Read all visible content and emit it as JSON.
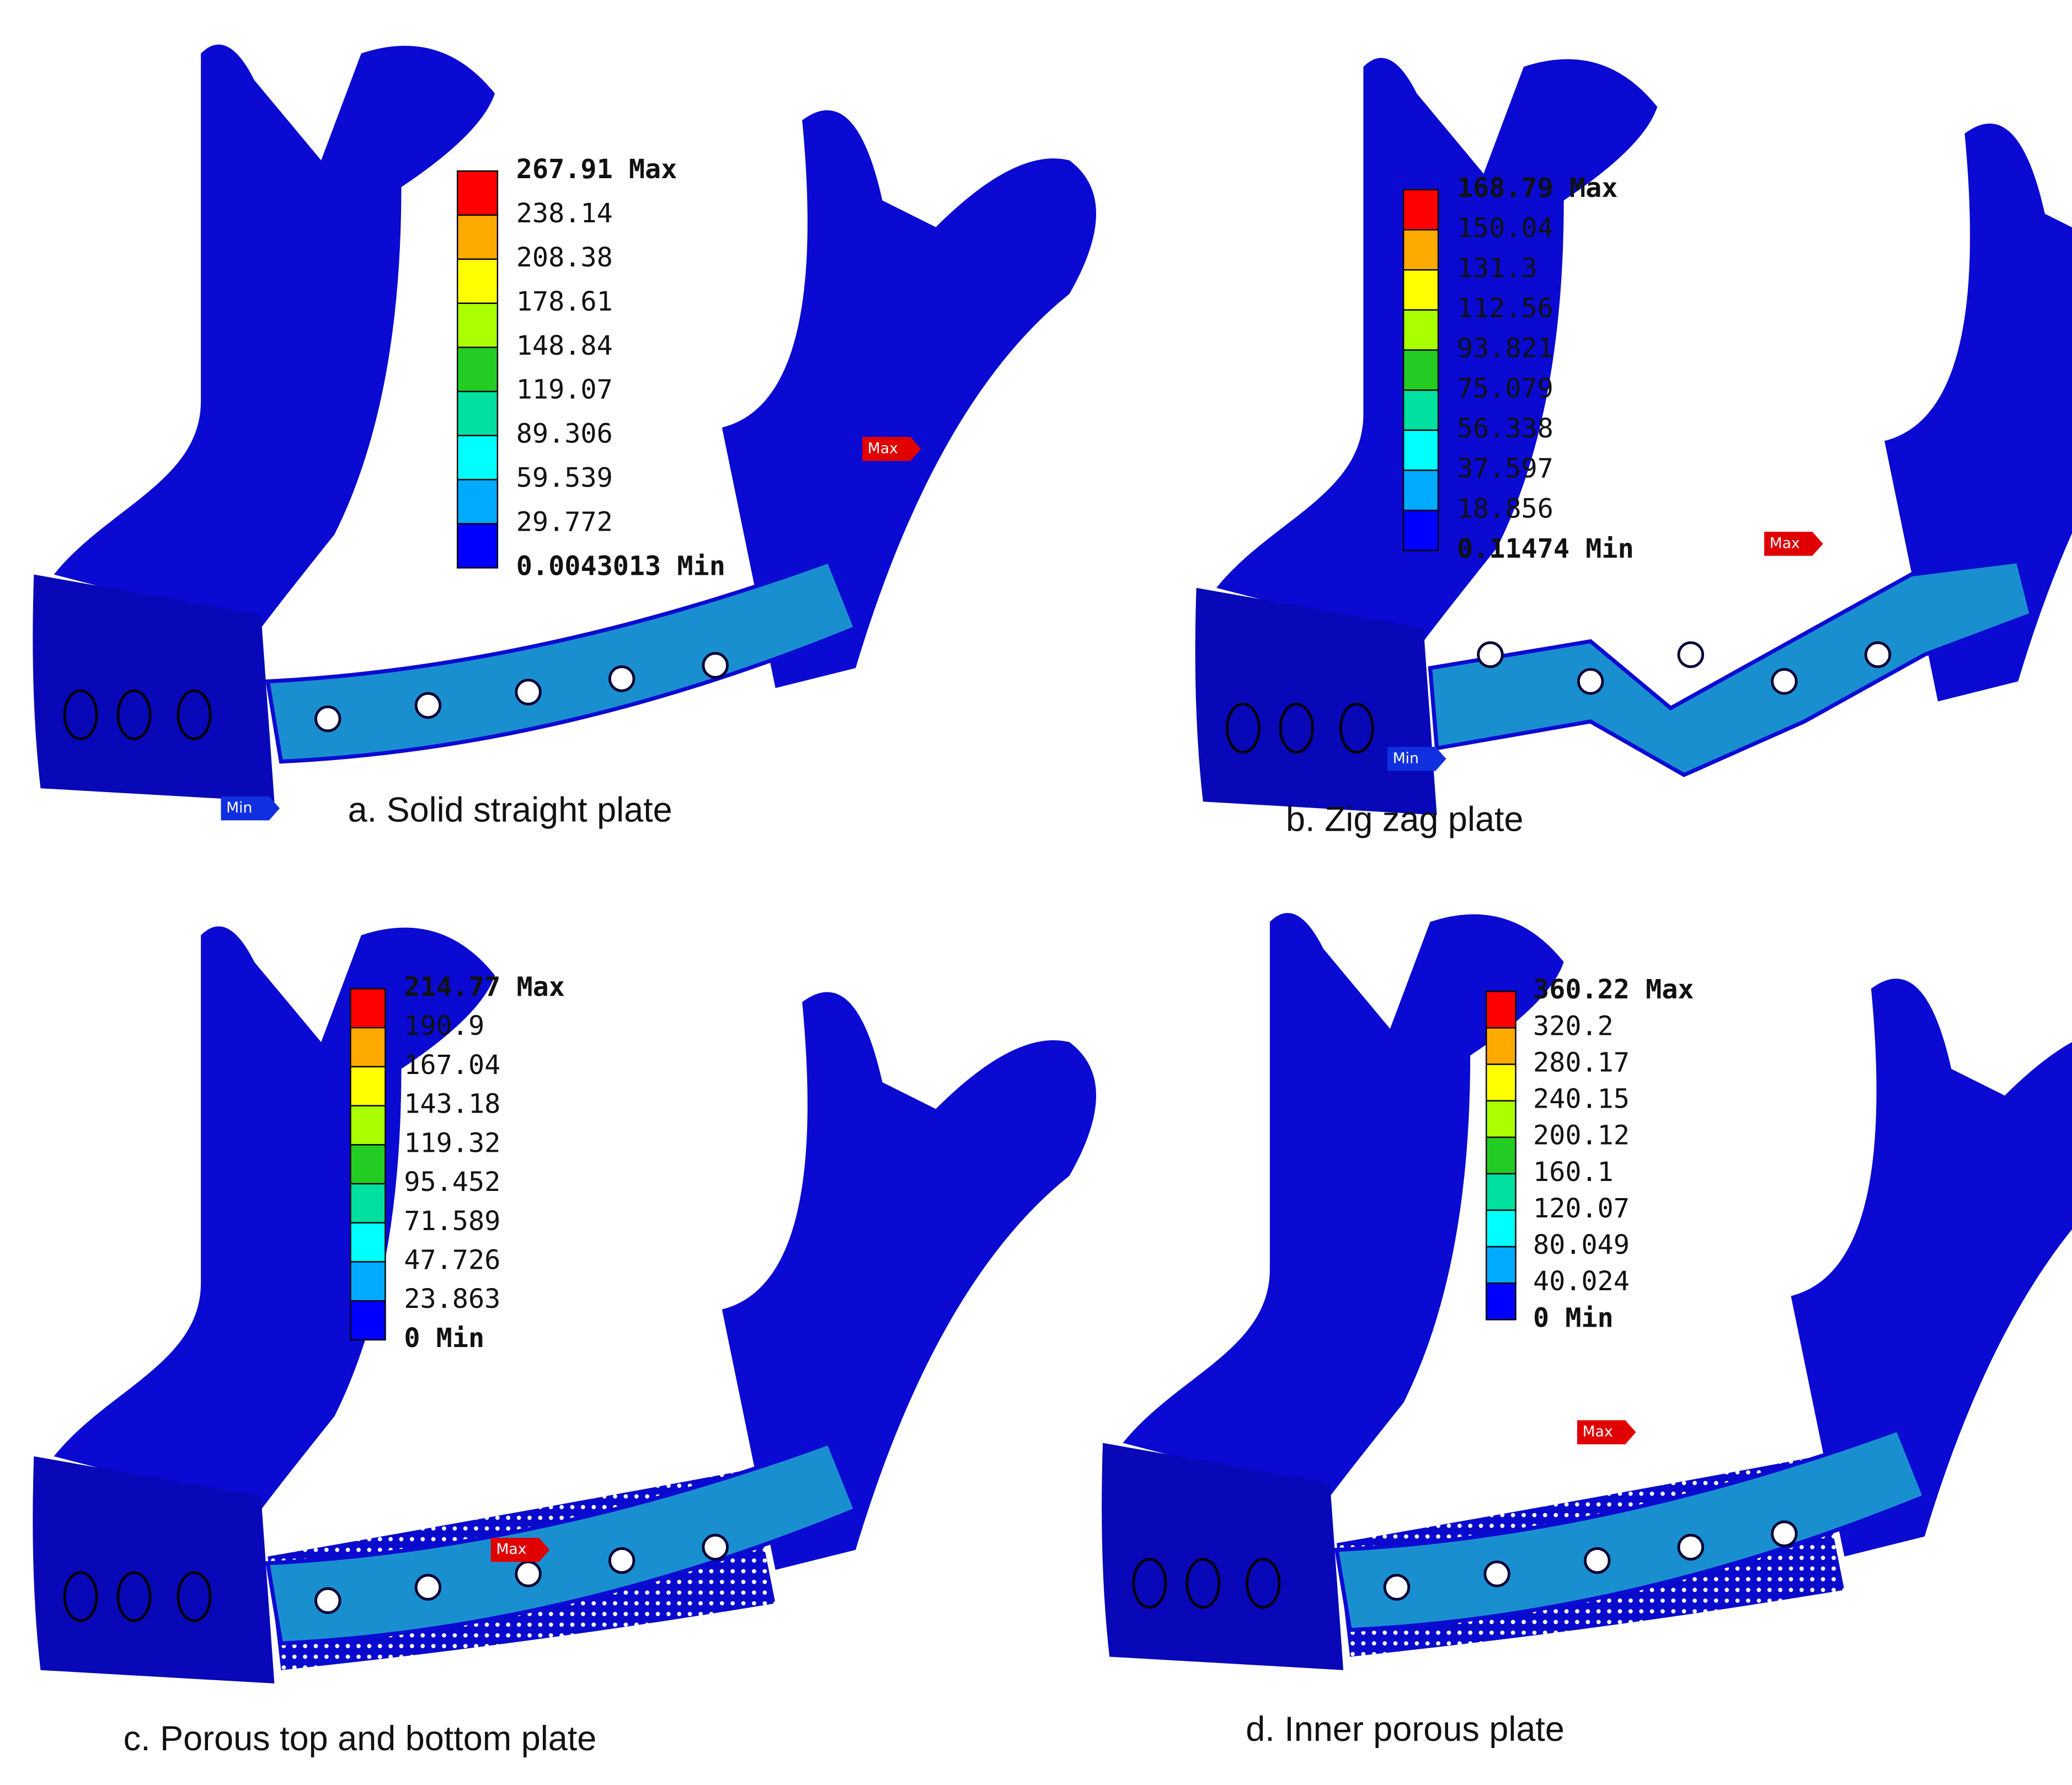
{
  "panels": [
    {
      "caption": "a. Solid straight plate",
      "legend": [
        "267.91 Max",
        "238.14",
        "208.38",
        "178.61",
        "148.84",
        "119.07",
        "89.306",
        "59.539",
        "29.772",
        "0.0043013 Min"
      ],
      "markers": [
        "Max",
        "Min"
      ]
    },
    {
      "caption": "b. Zig zag plate",
      "legend": [
        "168.79 Max",
        "150.04",
        "131.3",
        "112.56",
        "93.821",
        "75.079",
        "56.338",
        "37.597",
        "18.856",
        "0.11474 Min"
      ],
      "markers": [
        "Max",
        "Min"
      ]
    },
    {
      "caption": "c. Porous top and bottom plate",
      "legend": [
        "214.77 Max",
        "190.9",
        "167.04",
        "143.18",
        "119.32",
        "95.452",
        "71.589",
        "47.726",
        "23.863",
        "0 Min"
      ],
      "markers": [
        "Max"
      ]
    },
    {
      "caption": "d. Inner porous plate",
      "legend": [
        "360.22 Max",
        "320.2",
        "280.17",
        "240.15",
        "200.12",
        "160.1",
        "120.07",
        "80.049",
        "40.024",
        "0 Min"
      ],
      "markers": [
        "Max"
      ]
    }
  ]
}
